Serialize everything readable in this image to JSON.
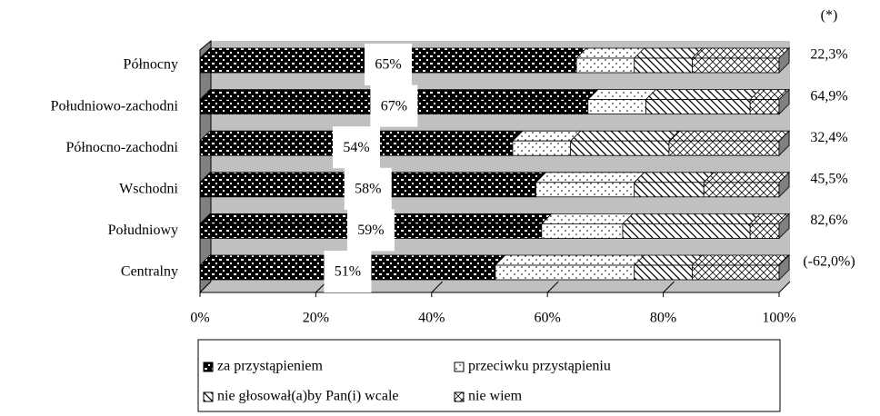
{
  "chart_data": {
    "type": "stacked_barh",
    "categories": [
      "Północny",
      "Południowo-zachodni",
      "Północno-zachodni",
      "Wschodni",
      "Południowy",
      "Centralny"
    ],
    "series": [
      {
        "name": "za przystąpieniem",
        "color": "#000000",
        "values": [
          65,
          67,
          54,
          58,
          59,
          51
        ],
        "value_labels": [
          "65%",
          "67%",
          "54%",
          "58%",
          "59%",
          "51%"
        ]
      },
      {
        "name": "przeciwku przystąpieniu",
        "color": "#000000",
        "values": [
          10,
          10,
          10,
          17,
          14,
          24
        ]
      },
      {
        "name": "nie głosował(a)by Pan(i) wcale",
        "color": "#000000",
        "values": [
          10,
          18,
          17,
          12,
          22,
          10
        ]
      },
      {
        "name": "nie wiem",
        "color": "#000000",
        "values": [
          15,
          5,
          19,
          13,
          5,
          15
        ]
      }
    ],
    "xlim": [
      0,
      100
    ],
    "xticks": [
      {
        "value": 0,
        "label": "0%"
      },
      {
        "value": 20,
        "label": "20%"
      },
      {
        "value": 40,
        "label": "40%"
      },
      {
        "value": 60,
        "label": "60%"
      },
      {
        "value": 80,
        "label": "80%"
      },
      {
        "value": 100,
        "label": "100%"
      }
    ],
    "annotation_header": "(*)",
    "annotations": [
      "22,3%",
      "64,9%",
      "32,4%",
      "45,5%",
      "82,6%",
      "(-62,0%)"
    ]
  }
}
